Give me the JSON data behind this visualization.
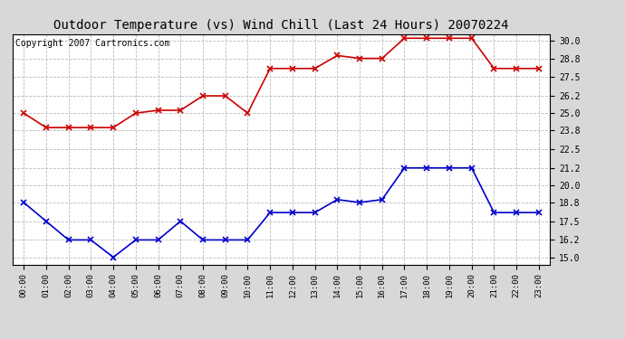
{
  "title": "Outdoor Temperature (vs) Wind Chill (Last 24 Hours) 20070224",
  "copyright_text": "Copyright 2007 Cartronics.com",
  "hours": [
    "00:00",
    "01:00",
    "02:00",
    "03:00",
    "04:00",
    "05:00",
    "06:00",
    "07:00",
    "08:00",
    "09:00",
    "10:00",
    "11:00",
    "12:00",
    "13:00",
    "14:00",
    "15:00",
    "16:00",
    "17:00",
    "18:00",
    "19:00",
    "20:00",
    "21:00",
    "22:00",
    "23:00"
  ],
  "red_temp": [
    25.0,
    24.0,
    24.0,
    24.0,
    24.0,
    25.0,
    25.2,
    25.2,
    26.2,
    26.2,
    25.0,
    28.1,
    28.1,
    28.1,
    29.0,
    28.8,
    28.8,
    30.2,
    30.2,
    30.2,
    30.2,
    28.1,
    28.1,
    28.1
  ],
  "blue_chill": [
    18.8,
    17.5,
    16.2,
    16.2,
    15.0,
    16.2,
    16.2,
    17.5,
    16.2,
    16.2,
    16.2,
    18.1,
    18.1,
    18.1,
    19.0,
    18.8,
    19.0,
    21.2,
    21.2,
    21.2,
    21.2,
    18.1,
    18.1,
    18.1
  ],
  "y_ticks": [
    15.0,
    16.2,
    17.5,
    18.8,
    20.0,
    21.2,
    22.5,
    23.8,
    25.0,
    26.2,
    27.5,
    28.8,
    30.0
  ],
  "ylim": [
    14.5,
    30.5
  ],
  "background_color": "#d8d8d8",
  "plot_bg_color": "#ffffff",
  "red_color": "#cc0000",
  "blue_color": "#0000cc",
  "grid_color": "#bbbbbb",
  "title_fontsize": 10,
  "copyright_fontsize": 7
}
